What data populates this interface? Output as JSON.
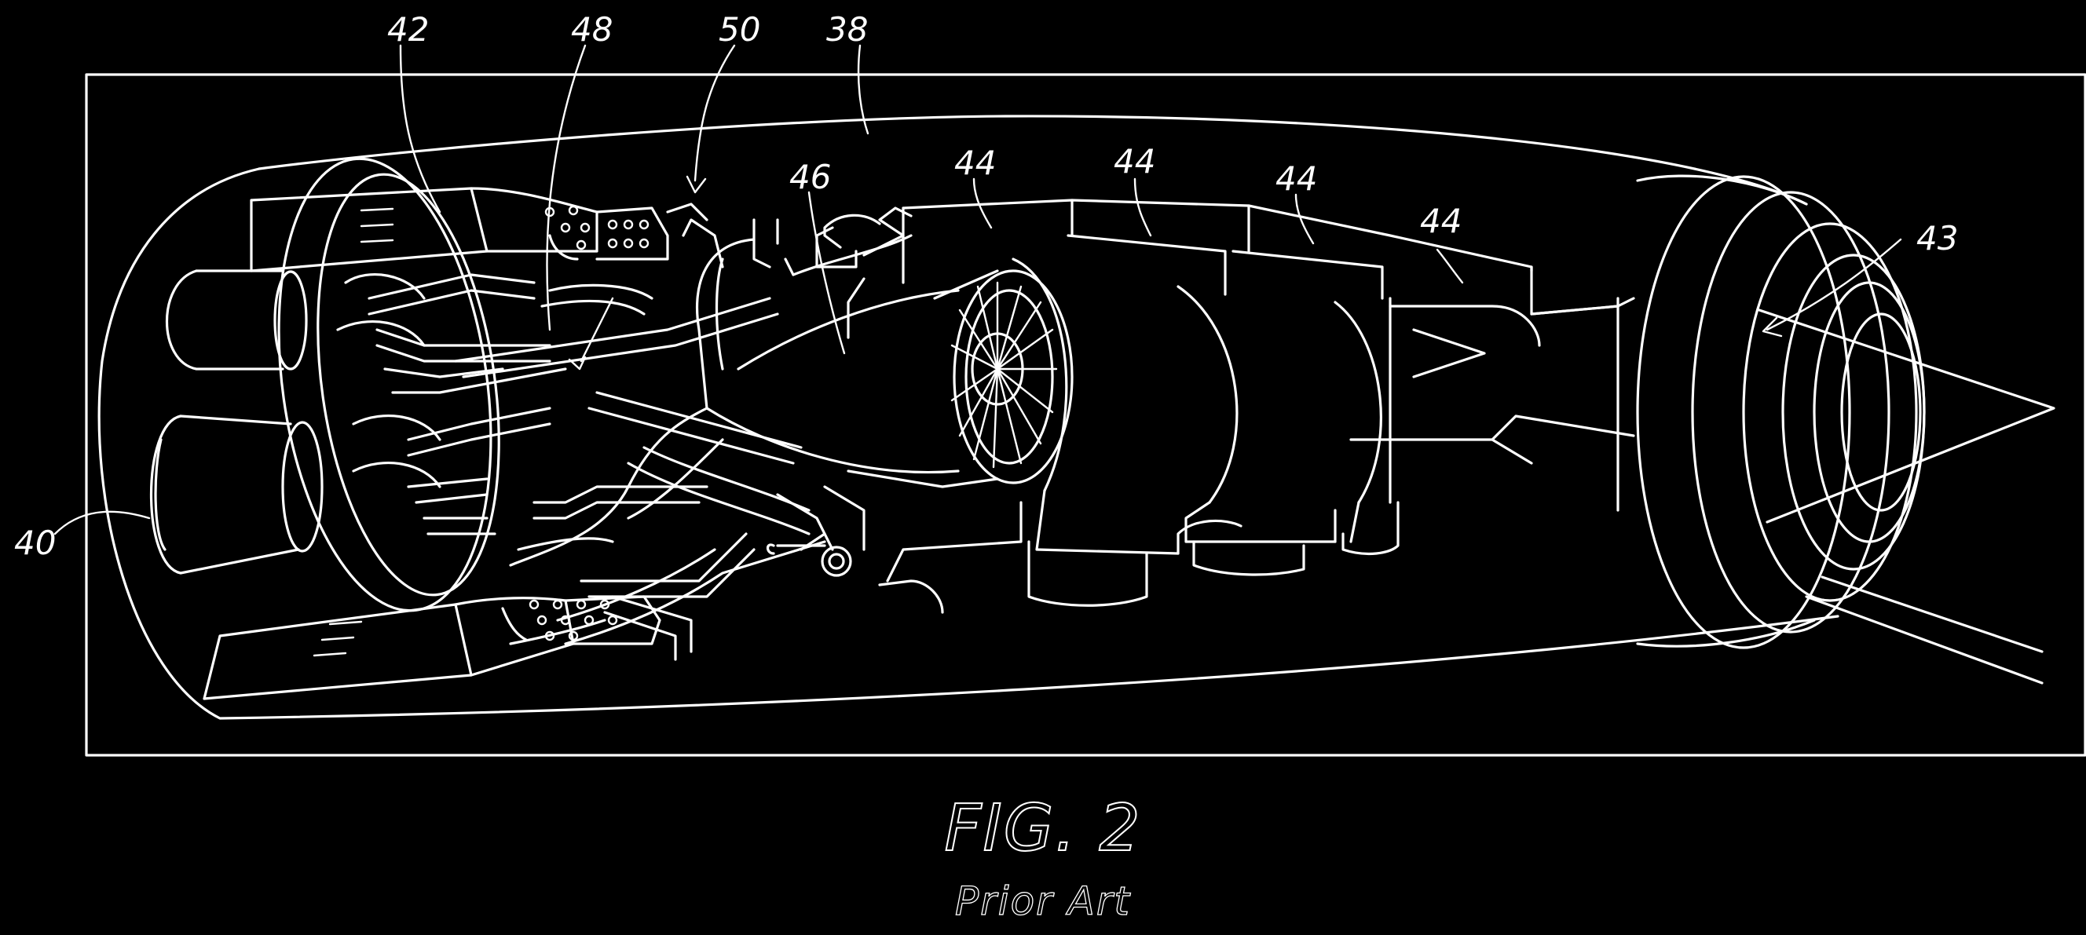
{
  "figure": {
    "title": "FIG. 2",
    "subtitle": "Prior Art",
    "colors": {
      "background": "#000000",
      "line": "#ffffff"
    }
  },
  "labels": {
    "ref_42": "42",
    "ref_48": "48",
    "ref_50": "50",
    "ref_38": "38",
    "ref_46": "46",
    "ref_44_a": "44",
    "ref_44_b": "44",
    "ref_44_c": "44",
    "ref_44_d": "44",
    "ref_43": "43",
    "ref_40": "40"
  }
}
